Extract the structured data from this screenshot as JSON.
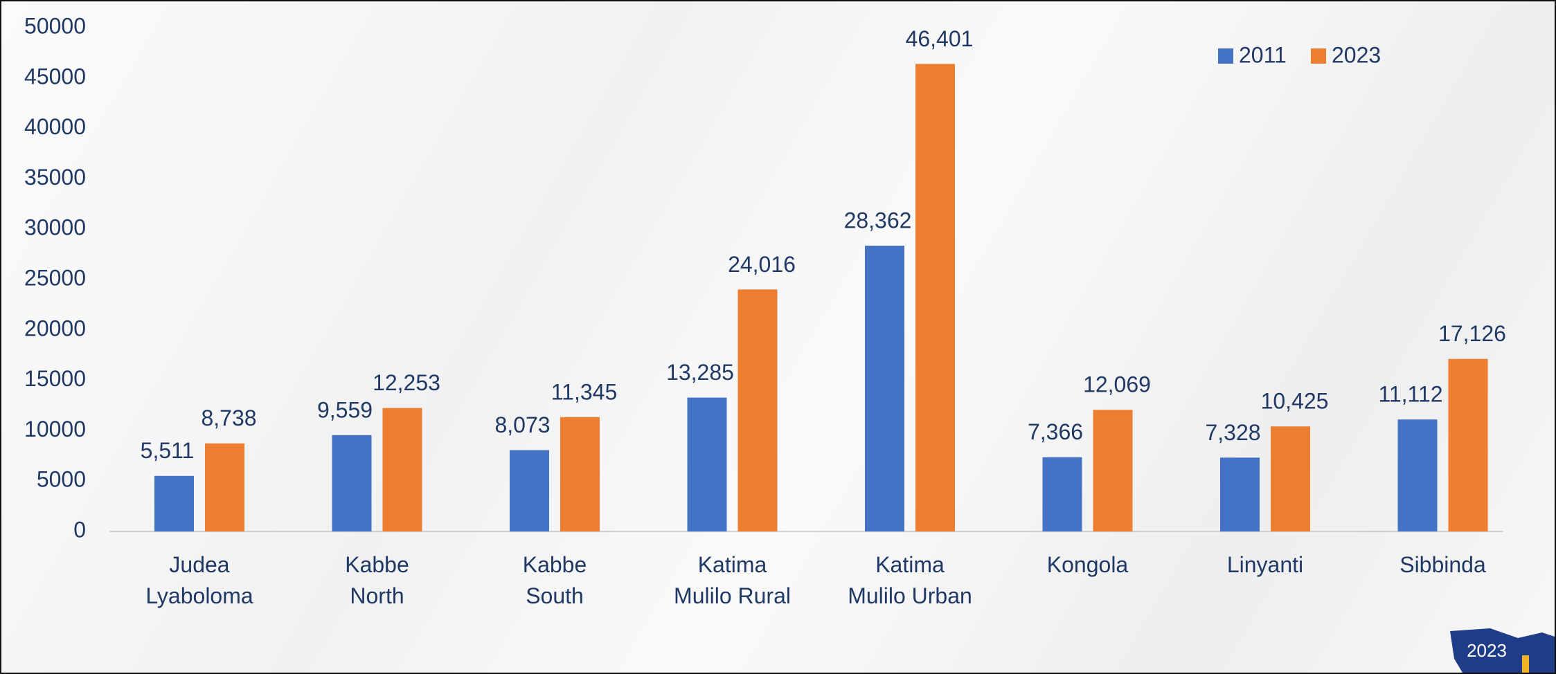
{
  "chart_data": {
    "type": "bar",
    "categories": [
      "Judea\nLyaboloma",
      "Kabbe\nNorth",
      "Kabbe\nSouth",
      "Katima\nMulilo Rural",
      "Katima\nMulilo Urban",
      "Kongola",
      "Linyanti",
      "Sibbinda"
    ],
    "series": [
      {
        "name": "2011",
        "color": "#4472c4",
        "values": [
          5511,
          9559,
          8073,
          13285,
          28362,
          7366,
          7328,
          11112
        ],
        "value_labels": [
          "5,511",
          "9,559",
          "8,073",
          "13,285",
          "28,362",
          "7,366",
          "7,328",
          "11,112"
        ]
      },
      {
        "name": "2023",
        "color": "#ed7d31",
        "values": [
          8738,
          12253,
          11345,
          24016,
          46401,
          12069,
          10425,
          17126
        ],
        "value_labels": [
          "8,738",
          "12,253",
          "11,345",
          "24,016",
          "46,401",
          "12,069",
          "10,425",
          "17,126"
        ]
      }
    ],
    "ylim": [
      0,
      50000
    ],
    "yticks": [
      0,
      5000,
      10000,
      15000,
      20000,
      25000,
      30000,
      35000,
      40000,
      45000,
      50000
    ],
    "grid": false,
    "legend": "top-right",
    "badge": "2023"
  }
}
